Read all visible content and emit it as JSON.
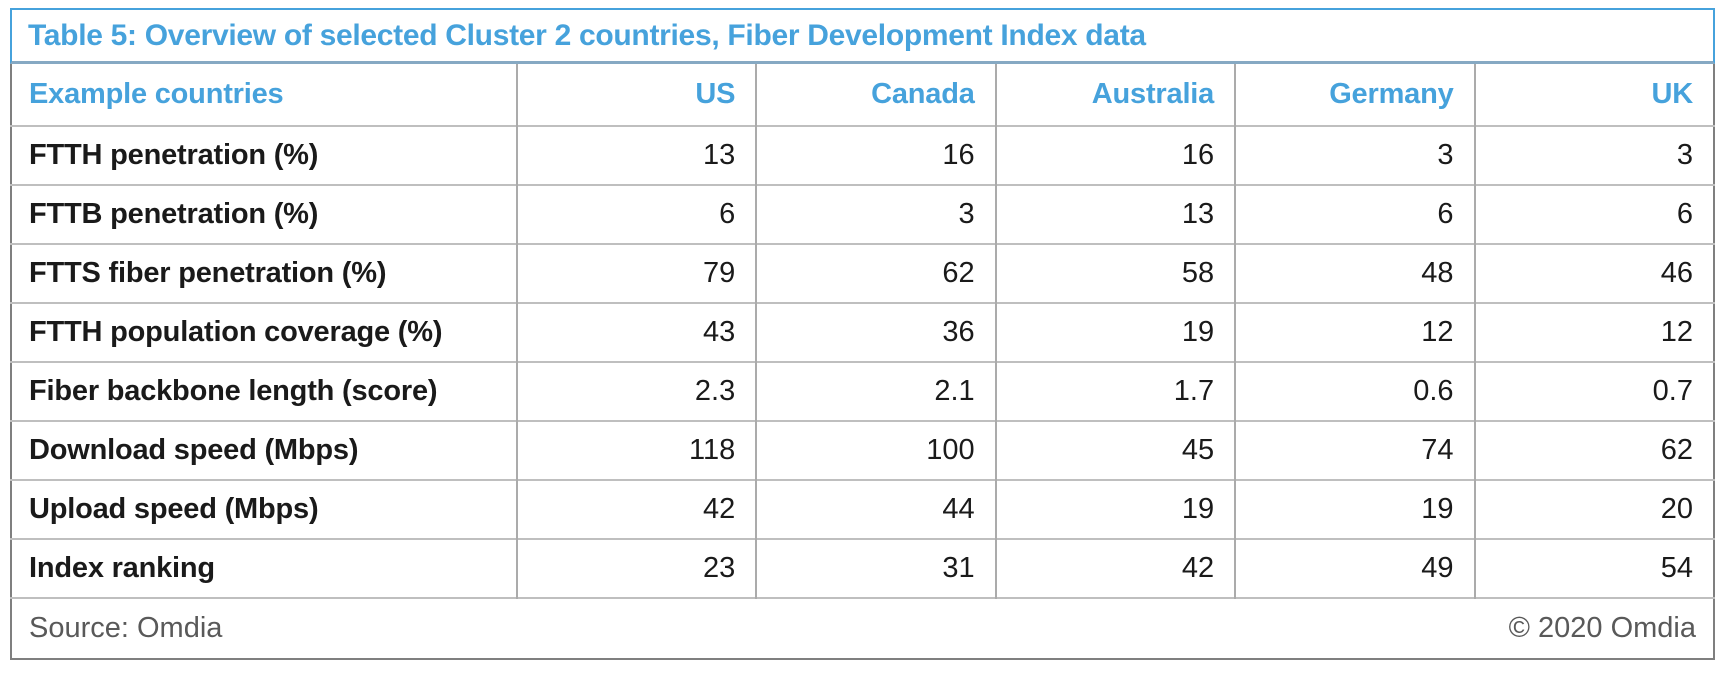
{
  "title": "Table 5: Overview of selected Cluster 2 countries, Fiber Development Index data",
  "colors": {
    "accent_blue": "#46A2DC",
    "title_divider": "#86A9C3",
    "body_border": "#7F7F7F",
    "grid_horizontal": "#BFBFBF",
    "grid_vertical": "#ABABAB",
    "text_dark": "#1A1A1A",
    "footer_gray": "#595959"
  },
  "table": {
    "header": {
      "label": "Example countries",
      "columns": [
        "US",
        "Canada",
        "Australia",
        "Germany",
        "UK"
      ]
    },
    "rows": [
      {
        "label": "FTTH penetration (%)",
        "values": [
          "13",
          "16",
          "16",
          "3",
          "3"
        ]
      },
      {
        "label": "FTTB penetration (%)",
        "values": [
          "6",
          "3",
          "13",
          "6",
          "6"
        ]
      },
      {
        "label": "FTTS fiber penetration (%)",
        "values": [
          "79",
          "62",
          "58",
          "48",
          "46"
        ]
      },
      {
        "label": "FTTH population coverage (%)",
        "values": [
          "43",
          "36",
          "19",
          "12",
          "12"
        ]
      },
      {
        "label": "Fiber backbone length (score)",
        "values": [
          "2.3",
          "2.1",
          "1.7",
          "0.6",
          "0.7"
        ]
      },
      {
        "label": "Download speed (Mbps)",
        "values": [
          "118",
          "100",
          "45",
          "74",
          "62"
        ]
      },
      {
        "label": "Upload speed (Mbps)",
        "values": [
          "42",
          "44",
          "19",
          "19",
          "20"
        ]
      },
      {
        "label": "Index ranking",
        "values": [
          "23",
          "31",
          "42",
          "49",
          "54"
        ]
      }
    ]
  },
  "footer": {
    "source": "Source: Omdia",
    "copyright": "© 2020 Omdia"
  }
}
